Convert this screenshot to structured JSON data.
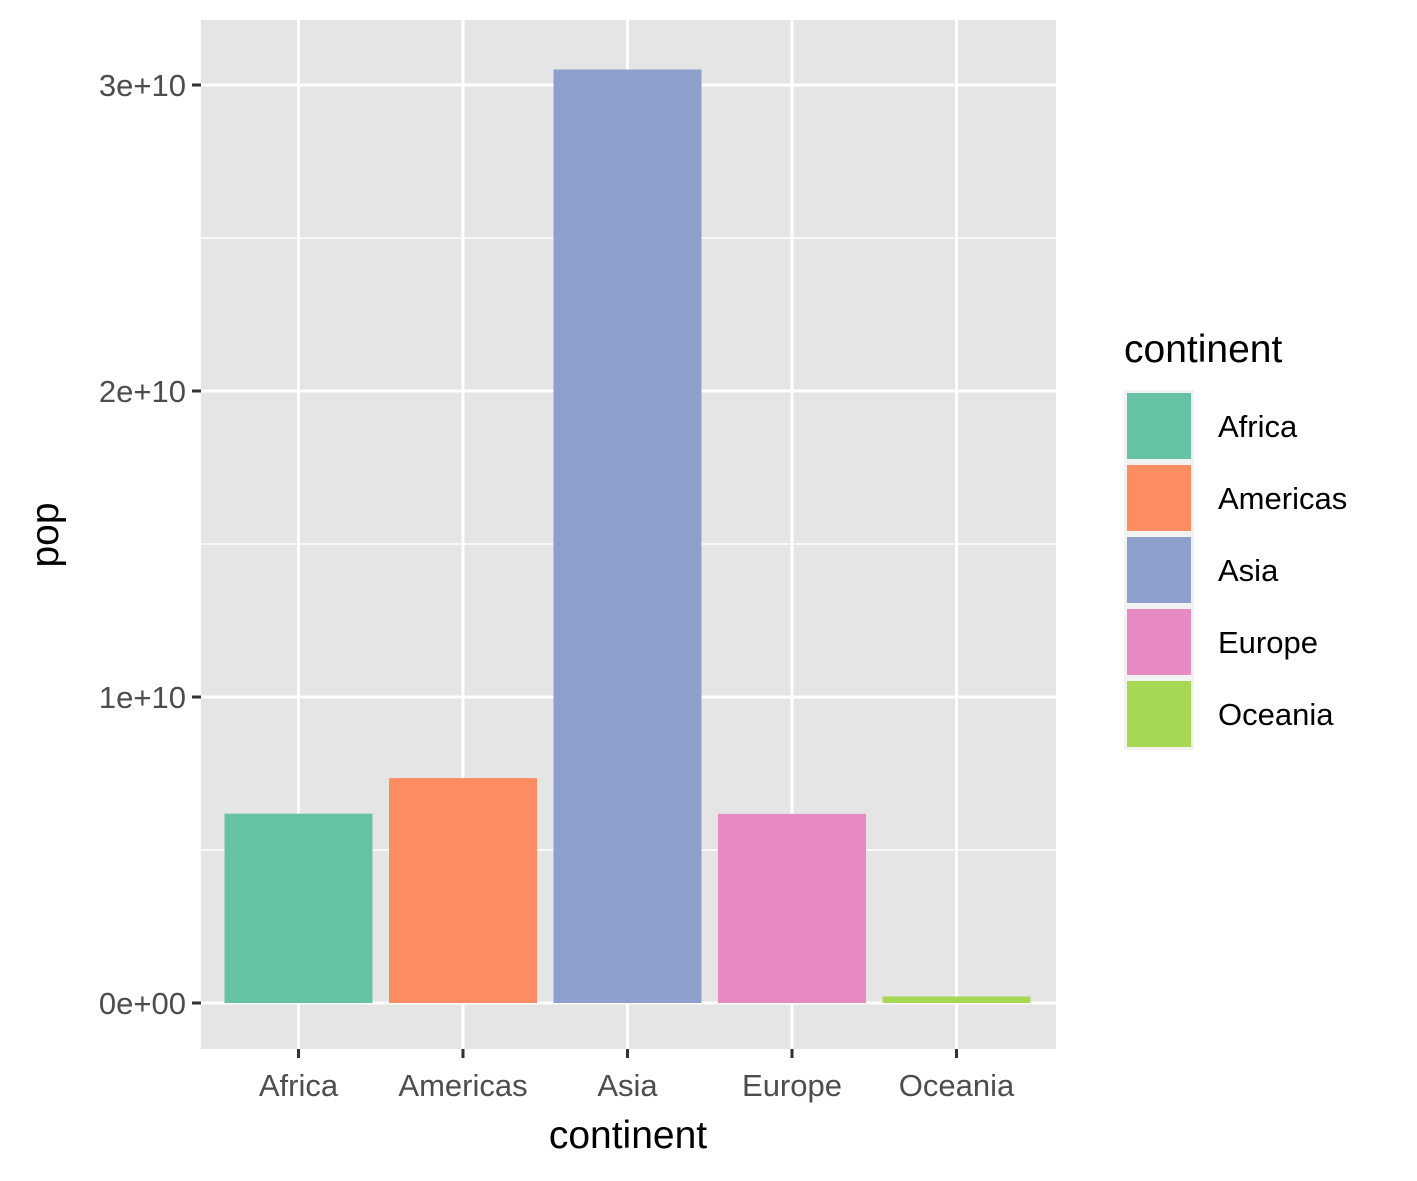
{
  "chart_data": {
    "type": "bar",
    "title": "",
    "xlabel": "continent",
    "ylabel": "pop",
    "categories": [
      "Africa",
      "Americas",
      "Asia",
      "Europe",
      "Oceania"
    ],
    "values": [
      6187585961,
      7351438499,
      30507333901,
      6181115304,
      212992136
    ],
    "colors": [
      "#66c2a5",
      "#fc8d62",
      "#8da0cb",
      "#e78ac3",
      "#a6d854"
    ],
    "ylim": [
      -1500000000.0,
      32000000000.0
    ],
    "y_ticks": [
      0,
      10000000000,
      20000000000,
      30000000000
    ],
    "y_tick_labels": [
      "0e+00",
      "1e+10",
      "2e+10",
      "3e+10"
    ],
    "legend": {
      "title": "continent",
      "position": "right",
      "entries": [
        "Africa",
        "Americas",
        "Asia",
        "Europe",
        "Oceania"
      ]
    },
    "grid": true,
    "panel_background": "#e5e5e5"
  }
}
